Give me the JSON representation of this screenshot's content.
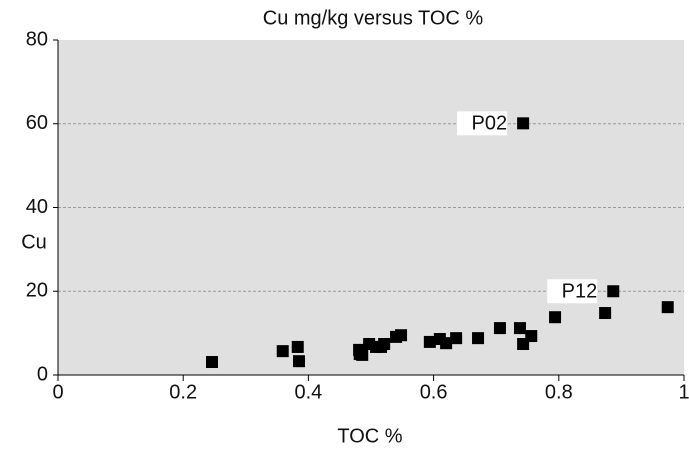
{
  "chart_data": {
    "type": "scatter",
    "title": "Cu mg/kg versus TOC %",
    "x_label": "TOC %",
    "y_label": "Cu",
    "x": [
      0.246,
      0.359,
      0.383,
      0.385,
      0.481,
      0.482,
      0.486,
      0.497,
      0.508,
      0.516,
      0.521,
      0.54,
      0.548,
      0.594,
      0.61,
      0.62,
      0.636,
      0.671,
      0.706,
      0.738,
      0.743,
      0.756,
      0.743,
      0.794,
      0.874,
      0.887,
      0.974
    ],
    "values": [
      3.1,
      5.7,
      6.7,
      3.3,
      6.0,
      5.0,
      4.8,
      7.4,
      6.7,
      6.7,
      7.4,
      9.1,
      9.5,
      7.9,
      8.6,
      7.6,
      8.8,
      8.8,
      11.2,
      11.2,
      7.4,
      9.3,
      60.1,
      13.8,
      14.8,
      20.0,
      16.2
    ],
    "point_labels": [
      null,
      null,
      null,
      null,
      null,
      null,
      null,
      null,
      null,
      null,
      null,
      null,
      null,
      null,
      null,
      null,
      null,
      null,
      null,
      null,
      null,
      null,
      "P02",
      null,
      null,
      "P12",
      null
    ],
    "color": "#000000",
    "plot_background": "#e0e0e0",
    "xlim": [
      0,
      1
    ],
    "xticks": [
      0,
      0.2,
      0.4,
      0.6,
      0.8,
      1
    ],
    "ylim": [
      0,
      80
    ],
    "yticks": [
      0,
      20,
      40,
      60,
      80
    ],
    "grid": true
  }
}
